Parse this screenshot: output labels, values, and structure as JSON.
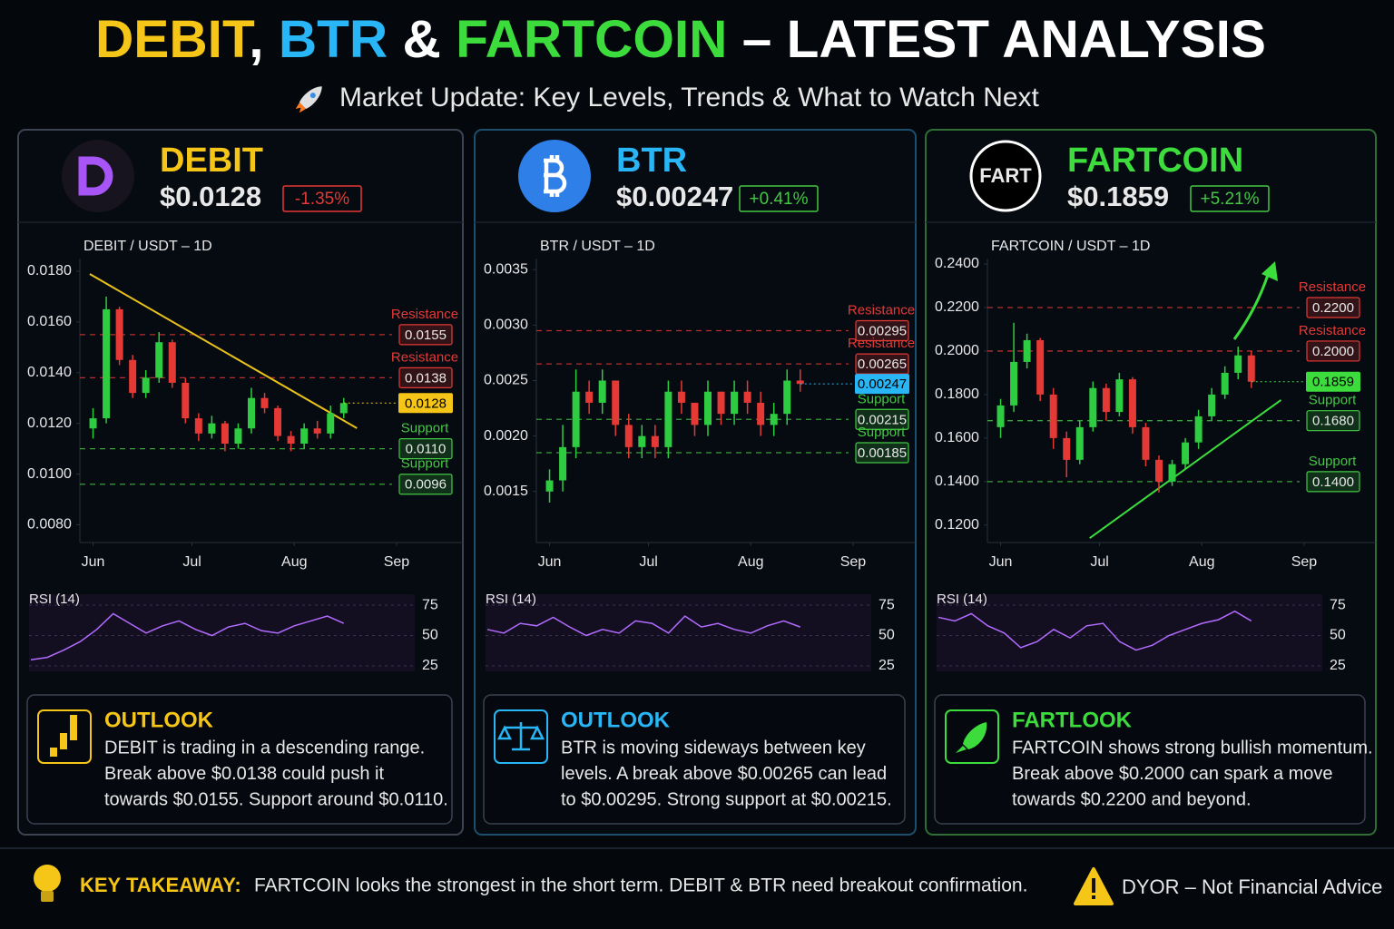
{
  "header": {
    "title": [
      {
        "text": "DEBIT",
        "color": "#f5c518"
      },
      {
        "text": ", ",
        "color": "#ffffff"
      },
      {
        "text": "BTR",
        "color": "#29b6f6"
      },
      {
        "text": " & ",
        "color": "#ffffff"
      },
      {
        "text": "FARTCOIN",
        "color": "#3ddc3d"
      },
      {
        "text": " – LATEST ANALYSIS",
        "color": "#ffffff"
      }
    ],
    "subtitle": "Market Update: Key Levels, Trends & What to Watch Next"
  },
  "panels": [
    {
      "name": "DEBIT",
      "color": "#f5c518",
      "border": "#3c4452",
      "price": "$0.0128",
      "change": "-1.35%",
      "change_color": "#e53935",
      "outlook": {
        "heading": "OUTLOOK",
        "lines": [
          "DEBIT is trading in a descending range.",
          "Break above $0.0138 could push it",
          "towards $0.0155. Support around $0.0110."
        ]
      }
    },
    {
      "name": "BTR",
      "color": "#29b6f6",
      "border": "#1c4f6e",
      "price": "$0.00247",
      "change": "+0.41%",
      "change_color": "#43c843",
      "outlook": {
        "heading": "OUTLOOK",
        "lines": [
          "BTR is moving sideways between key",
          "levels. A break above $0.00265 can lead",
          "to $0.00295. Strong support at $0.00215."
        ]
      }
    },
    {
      "name": "FARTCOIN",
      "color": "#3ddc3d",
      "border": "#2f6e34",
      "price": "$0.1859",
      "change": "+5.21%",
      "change_color": "#43c843",
      "icon_text": "FART",
      "outlook": {
        "heading": "FARTLOOK",
        "lines": [
          "FARTCOIN shows strong bullish momentum.",
          "Break above $0.2000 can spark a move",
          "towards $0.2200 and beyond."
        ]
      }
    }
  ],
  "chart_data": [
    {
      "type": "candlestick",
      "title": "DEBIT / USDT – 1D",
      "up_color": "#2ecc40",
      "down_color": "#e53935",
      "x": [
        0,
        4,
        8,
        12,
        16,
        20,
        24,
        28,
        32,
        36,
        40,
        44,
        48,
        52,
        56,
        60,
        64,
        68,
        72,
        76
      ],
      "open": [
        0.0118,
        0.0122,
        0.0165,
        0.0145,
        0.0132,
        0.0138,
        0.0152,
        0.0136,
        0.0122,
        0.0116,
        0.012,
        0.0112,
        0.0118,
        0.013,
        0.0126,
        0.0115,
        0.0112,
        0.0118,
        0.0116,
        0.0124
      ],
      "high": [
        0.0126,
        0.017,
        0.0166,
        0.0147,
        0.0141,
        0.0156,
        0.0153,
        0.0138,
        0.0124,
        0.0123,
        0.0121,
        0.012,
        0.0134,
        0.0132,
        0.0127,
        0.0117,
        0.012,
        0.0121,
        0.0127,
        0.013
      ],
      "low": [
        0.0114,
        0.012,
        0.0143,
        0.013,
        0.013,
        0.0136,
        0.0134,
        0.012,
        0.0113,
        0.0114,
        0.0109,
        0.011,
        0.0116,
        0.0124,
        0.0113,
        0.0109,
        0.011,
        0.0114,
        0.0114,
        0.0122
      ],
      "close": [
        0.0122,
        0.0165,
        0.0145,
        0.0132,
        0.0138,
        0.0152,
        0.0136,
        0.0122,
        0.0116,
        0.012,
        0.0112,
        0.0118,
        0.013,
        0.0126,
        0.0115,
        0.0112,
        0.0118,
        0.0116,
        0.0124,
        0.0128
      ],
      "xlim": [
        -4,
        100
      ],
      "xticks": [
        {
          "value": 0,
          "label": "Jun"
        },
        {
          "value": 30,
          "label": "Jul"
        },
        {
          "value": 61,
          "label": "Aug"
        },
        {
          "value": 92,
          "label": "Sep"
        }
      ],
      "ylim": [
        0.0073,
        0.0185
      ],
      "yticks": [
        {
          "value": 0.018,
          "label": "0.0180"
        },
        {
          "value": 0.016,
          "label": "0.0160"
        },
        {
          "value": 0.014,
          "label": "0.0140"
        },
        {
          "value": 0.012,
          "label": "0.0120"
        },
        {
          "value": 0.01,
          "label": "0.0100"
        },
        {
          "value": 0.008,
          "label": "0.0080"
        }
      ],
      "levels": [
        {
          "name": "Resistance",
          "value": 0.0155,
          "color": "#e53935"
        },
        {
          "name": "Resistance",
          "value": 0.0138,
          "color": "#e53935"
        },
        {
          "name": "Support",
          "value": 0.011,
          "label": "0.0110",
          "color": "#43c843"
        },
        {
          "name": "Support",
          "value": 0.0096,
          "color": "#43c843"
        }
      ],
      "current": {
        "value": 0.0128,
        "color": "#f5c518"
      },
      "trendline": {
        "x": [
          -1,
          80
        ],
        "y": [
          0.01789,
          0.01181
        ],
        "color": "#e8c21a"
      },
      "rsi": {
        "type": "line",
        "title": "RSI (14)",
        "color": "#b26bff",
        "ylim": [
          16,
          84
        ],
        "yticks": [
          75,
          50,
          25
        ],
        "values": [
          30,
          32,
          38,
          45,
          55,
          68,
          60,
          52,
          58,
          62,
          55,
          50,
          57,
          60,
          54,
          52,
          58,
          62,
          66,
          60
        ]
      }
    },
    {
      "type": "candlestick",
      "title": "BTR / USDT – 1D",
      "up_color": "#2ecc40",
      "down_color": "#e53935",
      "x": [
        0,
        4,
        8,
        12,
        16,
        20,
        24,
        28,
        32,
        36,
        40,
        44,
        48,
        52,
        56,
        60,
        64,
        68,
        72,
        76
      ],
      "open": [
        0.0015,
        0.0016,
        0.0019,
        0.0024,
        0.0023,
        0.0025,
        0.0021,
        0.0019,
        0.002,
        0.0019,
        0.0024,
        0.0023,
        0.0021,
        0.0024,
        0.0022,
        0.0024,
        0.0023,
        0.0021,
        0.0022,
        0.0025
      ],
      "high": [
        0.0017,
        0.0021,
        0.0026,
        0.0025,
        0.0026,
        0.0025,
        0.0022,
        0.0021,
        0.0021,
        0.0025,
        0.0025,
        0.0023,
        0.0025,
        0.0024,
        0.0025,
        0.0025,
        0.0024,
        0.0023,
        0.0026,
        0.0026
      ],
      "low": [
        0.0014,
        0.0015,
        0.0018,
        0.0022,
        0.0022,
        0.002,
        0.0018,
        0.0018,
        0.0018,
        0.0018,
        0.0022,
        0.002,
        0.002,
        0.0021,
        0.0021,
        0.0022,
        0.002,
        0.002,
        0.0021,
        0.0024
      ],
      "close": [
        0.0016,
        0.0019,
        0.0024,
        0.0023,
        0.0025,
        0.0021,
        0.0019,
        0.002,
        0.0019,
        0.0024,
        0.0023,
        0.0021,
        0.0024,
        0.0022,
        0.0024,
        0.0023,
        0.0021,
        0.0022,
        0.0025,
        0.00247
      ],
      "xlim": [
        -4,
        100
      ],
      "xticks": [
        {
          "value": 0,
          "label": "Jun"
        },
        {
          "value": 30,
          "label": "Jul"
        },
        {
          "value": 61,
          "label": "Aug"
        },
        {
          "value": 92,
          "label": "Sep"
        }
      ],
      "ylim": [
        0.00104,
        0.0036
      ],
      "yticks": [
        0.0035,
        {
          "value": 0.003,
          "label": "0.0030"
        },
        0.0025,
        {
          "value": 0.002,
          "label": "0.0020"
        },
        0.0015
      ],
      "levels": [
        {
          "name": "Resistance",
          "value": 0.00295,
          "color": "#e53935"
        },
        {
          "name": "Resistance",
          "value": 0.00265,
          "color": "#e53935"
        },
        {
          "name": "Support",
          "value": 0.00215,
          "color": "#43c843"
        },
        {
          "name": "Support",
          "value": 0.00185,
          "color": "#43c843"
        }
      ],
      "current": {
        "value": 0.00247,
        "color": "#29b6f6"
      },
      "rsi": {
        "type": "line",
        "title": "RSI (14)",
        "color": "#b26bff",
        "ylim": [
          16,
          84
        ],
        "yticks": [
          75,
          50,
          25
        ],
        "values": [
          55,
          52,
          60,
          58,
          65,
          57,
          50,
          55,
          52,
          62,
          60,
          52,
          66,
          57,
          60,
          55,
          52,
          58,
          62,
          57
        ]
      }
    },
    {
      "type": "candlestick",
      "title": "FARTCOIN / USDT – 1D",
      "up_color": "#2ecc40",
      "down_color": "#e53935",
      "x": [
        0,
        4,
        8,
        12,
        16,
        20,
        24,
        28,
        32,
        36,
        40,
        44,
        48,
        52,
        56,
        60,
        64,
        68,
        72,
        76
      ],
      "open": [
        0.165,
        0.175,
        0.195,
        0.205,
        0.18,
        0.16,
        0.15,
        0.165,
        0.183,
        0.172,
        0.187,
        0.165,
        0.15,
        0.14,
        0.148,
        0.158,
        0.17,
        0.18,
        0.19,
        0.198
      ],
      "high": [
        0.178,
        0.213,
        0.208,
        0.206,
        0.183,
        0.163,
        0.168,
        0.186,
        0.185,
        0.19,
        0.188,
        0.167,
        0.152,
        0.15,
        0.16,
        0.173,
        0.183,
        0.193,
        0.202,
        0.2
      ],
      "low": [
        0.16,
        0.172,
        0.192,
        0.177,
        0.155,
        0.142,
        0.148,
        0.163,
        0.168,
        0.17,
        0.162,
        0.147,
        0.135,
        0.138,
        0.146,
        0.155,
        0.168,
        0.178,
        0.187,
        0.183
      ],
      "close": [
        0.175,
        0.195,
        0.205,
        0.18,
        0.16,
        0.15,
        0.165,
        0.183,
        0.172,
        0.187,
        0.165,
        0.15,
        0.14,
        0.148,
        0.158,
        0.17,
        0.18,
        0.19,
        0.198,
        0.1859
      ],
      "xlim": [
        -4,
        100
      ],
      "xticks": [
        {
          "value": 0,
          "label": "Jun"
        },
        {
          "value": 30,
          "label": "Jul"
        },
        {
          "value": 61,
          "label": "Aug"
        },
        {
          "value": 92,
          "label": "Sep"
        }
      ],
      "ylim": [
        0.112,
        0.2425
      ],
      "yticks": [
        {
          "value": 0.24,
          "label": "0.2400"
        },
        {
          "value": 0.22,
          "label": "0.2200"
        },
        {
          "value": 0.2,
          "label": "0.2000"
        },
        {
          "value": 0.18,
          "label": "0.1800"
        },
        {
          "value": 0.16,
          "label": "0.1600"
        },
        {
          "value": 0.14,
          "label": "0.1400"
        },
        {
          "value": 0.12,
          "label": "0.1200"
        }
      ],
      "levels": [
        {
          "name": "Resistance",
          "value": 0.22,
          "label": "0.2200",
          "color": "#e53935"
        },
        {
          "name": "Resistance",
          "value": 0.2,
          "label": "0.2000",
          "color": "#e53935"
        },
        {
          "name": "Support",
          "value": 0.168,
          "label": "0.1680",
          "color": "#43c843"
        },
        {
          "name": "Support",
          "value": 0.14,
          "label": "0.1400",
          "color": "#43c843"
        }
      ],
      "current": {
        "value": 0.1859,
        "color": "#3ddc3d"
      },
      "trendline": {
        "x": [
          27,
          85
        ],
        "y": [
          0.114,
          0.1775
        ],
        "color": "#3ddc3d"
      },
      "rsi": {
        "type": "line",
        "title": "RSI (14)",
        "color": "#b26bff",
        "ylim": [
          16,
          84
        ],
        "yticks": [
          75,
          50,
          25
        ],
        "values": [
          65,
          62,
          68,
          58,
          52,
          40,
          45,
          55,
          48,
          58,
          60,
          45,
          38,
          42,
          50,
          55,
          60,
          63,
          70,
          62
        ]
      }
    }
  ],
  "footer": {
    "label": "KEY TAKEAWAY:",
    "text": "FARTCOIN looks the strongest in the short term. DEBIT & BTR need breakout confirmation.",
    "disclaimer": "DYOR – Not Financial Advice"
  }
}
